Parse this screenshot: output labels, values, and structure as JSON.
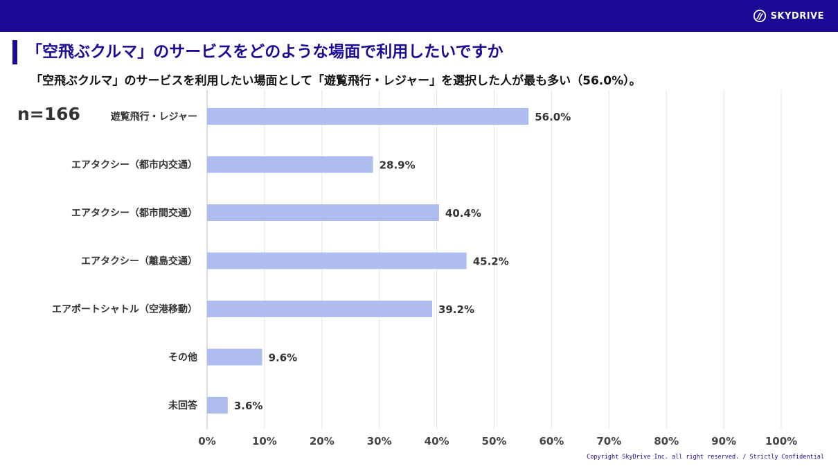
{
  "header": {
    "logo_text": "SKYDRIVE",
    "logo_icon": "skydrive-swirl-icon",
    "bar_color": "#1a0a96"
  },
  "title": "「空飛ぶクルマ」のサービスをどのような場面で利用したいですか",
  "subtitle": "「空飛ぶクルマ」のサービスを利用したい場面として「遊覧飛行・レジャー」を選択した人が最も多い（56.0%）。",
  "sample_size": "n=166",
  "footer": {
    "copyright": "Copyright SkyDrive Inc. all right reserved. / Strictly Confidential"
  },
  "chart_data": {
    "type": "bar",
    "orientation": "horizontal",
    "categories": [
      "遊覧飛行・レジャー",
      "エアタクシー（都市内交通）",
      "エアタクシー（都市間交通）",
      "エアタクシー（離島交通）",
      "エアポートシャトル（空港移動）",
      "その他",
      "未回答"
    ],
    "values": [
      56.0,
      28.9,
      40.4,
      45.2,
      39.2,
      9.6,
      3.6
    ],
    "value_labels": [
      "56.0%",
      "28.9%",
      "40.4%",
      "45.2%",
      "39.2%",
      "9.6%",
      "3.6%"
    ],
    "xlim": [
      0,
      100
    ],
    "x_ticks": [
      0,
      10,
      20,
      30,
      40,
      50,
      60,
      70,
      80,
      90,
      100
    ],
    "x_tick_labels": [
      "0%",
      "10%",
      "20%",
      "30%",
      "40%",
      "50%",
      "60%",
      "70%",
      "80%",
      "90%",
      "100%"
    ],
    "grid": true,
    "bar_color": "#aebcf0",
    "grid_color": "#e3e3e3"
  }
}
